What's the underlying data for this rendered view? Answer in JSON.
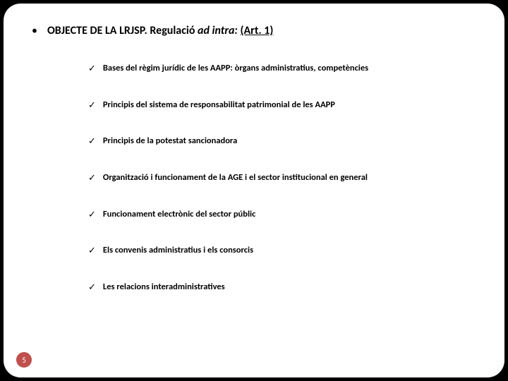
{
  "background_color": "#000000",
  "slide_background": "#ffffff",
  "slide_border_radius": 24,
  "title": {
    "prefix_bold": "OBJECTE DE LA LRJSP. Regulació ",
    "italic_part": "ad intra:",
    "space": " ",
    "underlined_part": "(Art. 1)",
    "bullet_glyph": "•",
    "font_size": 16,
    "color": "#000000"
  },
  "items": [
    {
      "text": "Bases del règim jurídic de les AAPP: òrgans administratius, competències"
    },
    {
      "text": "Principis del sistema de responsabilitat patrimonial de les AAPP"
    },
    {
      "text": "Principis de la potestat sancionadora"
    },
    {
      "text": "Organització i funcionament de la AGE i el sector institucional en general"
    },
    {
      "text": "Funcionament electrònic del sector públic"
    },
    {
      "text": "Els convenis administratius i els consorcis"
    },
    {
      "text": "Les relacions interadministratives"
    }
  ],
  "item_style": {
    "check_glyph": "✓",
    "font_size": 12.5,
    "font_weight": 700,
    "color": "#000000",
    "row_gap": 34
  },
  "page_number": {
    "value": "5",
    "background": "#c0504d",
    "text_color": "#ffffff",
    "diameter": 22,
    "font_size": 11
  }
}
